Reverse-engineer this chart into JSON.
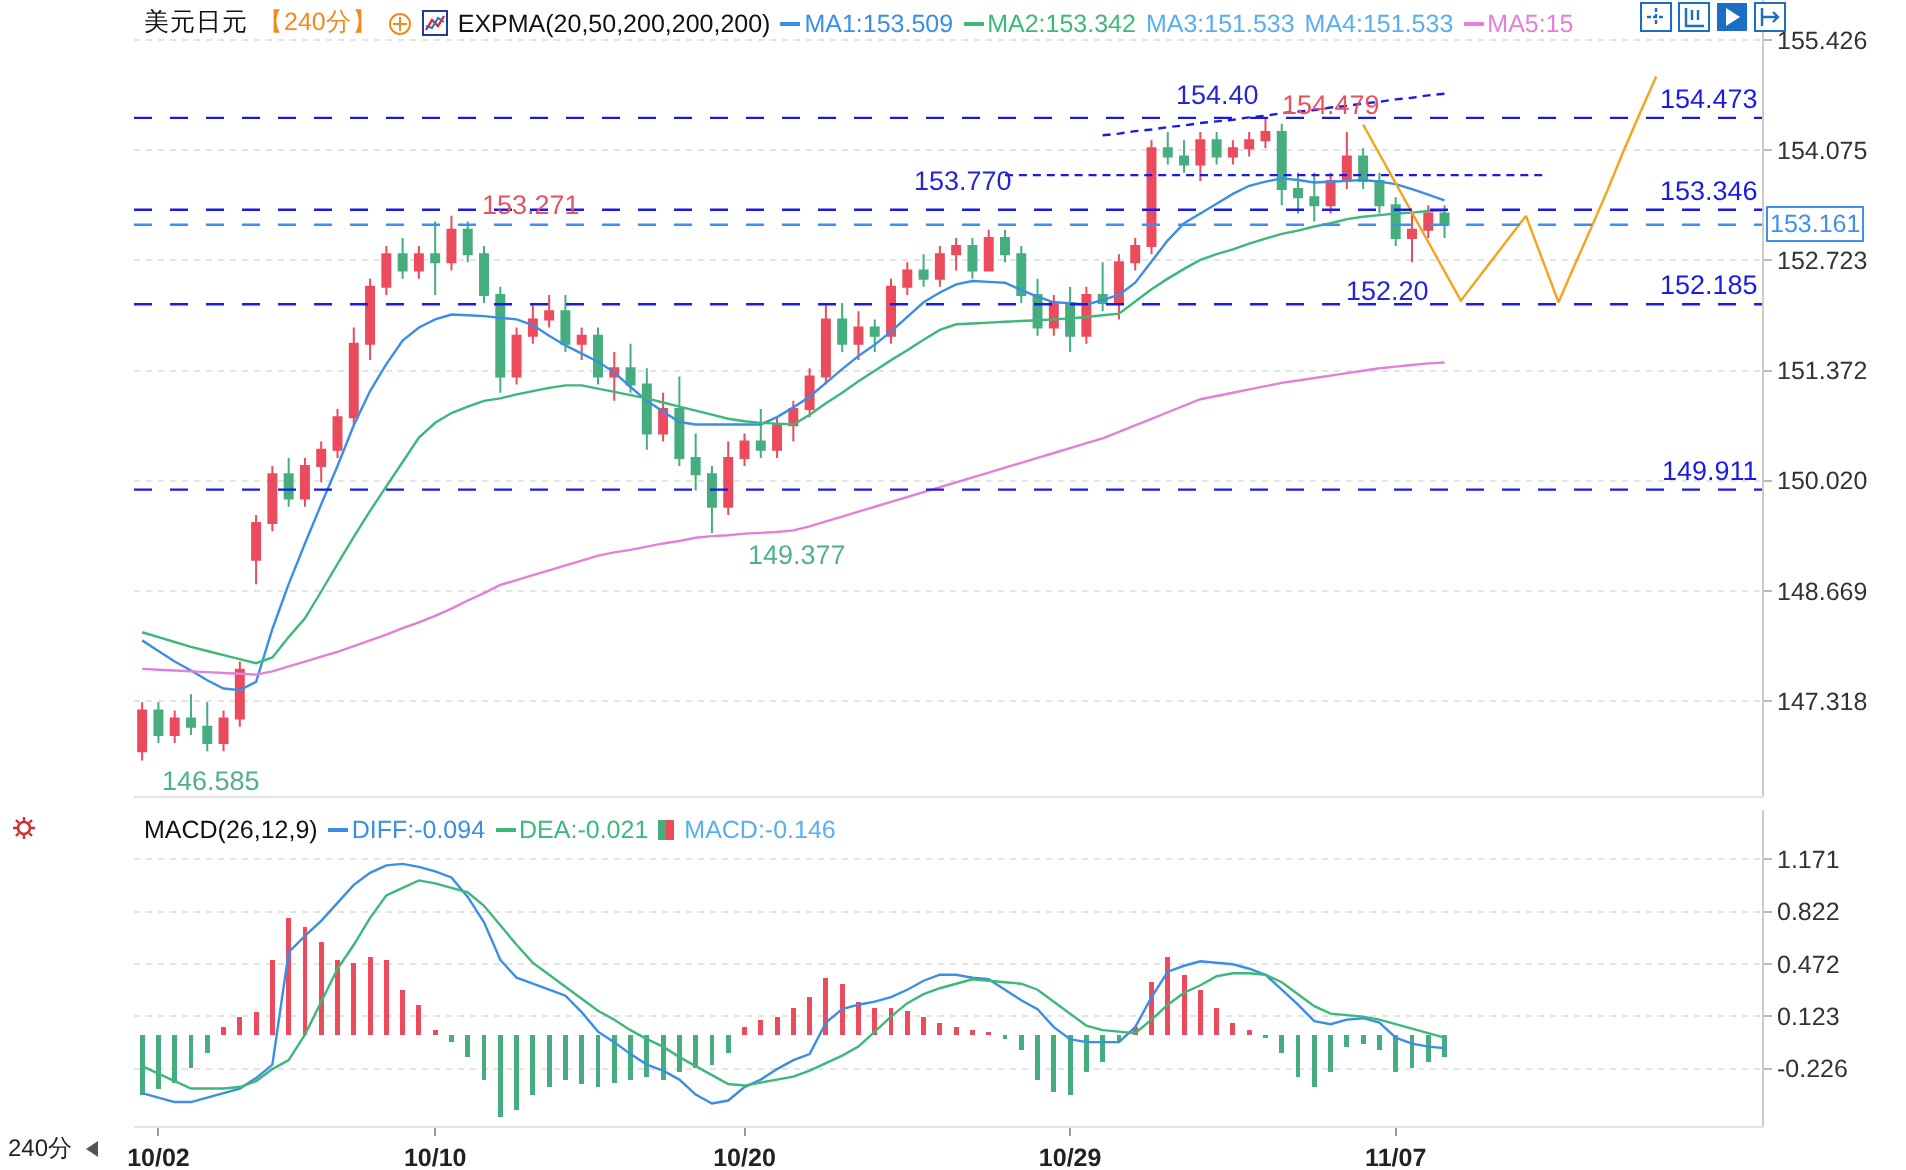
{
  "chart_data": [
    {
      "type": "candlestick",
      "title": "美元日元",
      "subtitle": "【240分】",
      "legend_title": "EXPMA(20,50,200,200,200)",
      "legend": "top",
      "grid": "y",
      "tick_labels": "y",
      "categories": [
        null,
        null,
        null,
        null,
        null,
        null,
        null,
        null,
        null,
        null,
        null,
        null,
        null,
        null,
        null,
        null,
        null,
        null,
        null,
        null,
        null,
        null,
        null,
        null,
        null,
        null,
        null,
        null,
        null,
        null,
        null,
        null,
        null,
        null,
        null,
        null,
        null,
        null,
        null,
        null,
        null,
        null,
        null,
        null,
        null,
        null,
        null,
        null,
        null,
        null,
        null,
        null,
        null,
        null,
        null,
        null,
        null,
        null,
        null,
        null,
        null,
        null,
        null,
        null,
        null,
        null,
        null,
        null,
        null,
        null,
        null,
        null,
        null,
        null,
        null,
        null,
        null,
        null,
        null,
        null,
        null,
        null,
        null,
        null,
        null,
        null,
        null,
        null,
        null,
        null,
        null,
        null,
        null,
        null,
        null,
        null,
        null,
        null,
        null,
        null
      ],
      "ohlc": [
        [
          146.7,
          147.3,
          146.585,
          147.2
        ],
        [
          147.2,
          147.3,
          146.8,
          146.9
        ],
        [
          146.9,
          147.2,
          146.8,
          147.1
        ],
        [
          147.1,
          147.4,
          146.9,
          147.0
        ],
        [
          147.0,
          147.3,
          146.7,
          146.8
        ],
        [
          146.8,
          147.2,
          146.7,
          147.1
        ],
        [
          147.1,
          147.8,
          147.0,
          147.7
        ],
        [
          149.05,
          149.6,
          148.75,
          149.5
        ],
        [
          149.5,
          150.2,
          149.4,
          150.1
        ],
        [
          150.1,
          150.3,
          149.7,
          149.8
        ],
        [
          149.8,
          150.3,
          149.7,
          150.2
        ],
        [
          150.2,
          150.5,
          150.0,
          150.4
        ],
        [
          150.4,
          150.9,
          150.3,
          150.8
        ],
        [
          150.8,
          151.9,
          150.7,
          151.7
        ],
        [
          151.7,
          152.5,
          151.5,
          152.4
        ],
        [
          152.4,
          152.9,
          152.3,
          152.8
        ],
        [
          152.8,
          153.0,
          152.5,
          152.6
        ],
        [
          152.6,
          152.9,
          152.5,
          152.8
        ],
        [
          152.8,
          153.2,
          152.3,
          152.7
        ],
        [
          152.7,
          153.271,
          152.6,
          153.1
        ],
        [
          153.1,
          153.2,
          152.7,
          152.8
        ],
        [
          152.8,
          152.9,
          152.2,
          152.3
        ],
        [
          152.3,
          152.4,
          151.1,
          151.3
        ],
        [
          151.3,
          151.9,
          151.2,
          151.8
        ],
        [
          151.8,
          152.2,
          151.7,
          152.0
        ],
        [
          152.0,
          152.3,
          151.9,
          152.1
        ],
        [
          152.1,
          152.3,
          151.6,
          151.7
        ],
        [
          151.7,
          151.9,
          151.5,
          151.8
        ],
        [
          151.8,
          151.9,
          151.2,
          151.3
        ],
        [
          151.3,
          151.6,
          151.0,
          151.4
        ],
        [
          151.4,
          151.7,
          151.1,
          151.2
        ],
        [
          151.2,
          151.4,
          150.4,
          150.6
        ],
        [
          150.6,
          151.1,
          150.5,
          150.9
        ],
        [
          150.9,
          151.3,
          150.2,
          150.3
        ],
        [
          150.3,
          150.6,
          149.9,
          150.1
        ],
        [
          150.1,
          150.2,
          149.377,
          149.7
        ],
        [
          149.7,
          150.5,
          149.6,
          150.3
        ],
        [
          150.3,
          150.6,
          150.2,
          150.5
        ],
        [
          150.5,
          150.9,
          150.3,
          150.4
        ],
        [
          150.4,
          150.8,
          150.3,
          150.7
        ],
        [
          150.7,
          151.0,
          150.5,
          150.9
        ],
        [
          150.9,
          151.4,
          150.8,
          151.3
        ],
        [
          151.3,
          152.2,
          151.2,
          152.0
        ],
        [
          152.0,
          152.2,
          151.6,
          151.7
        ],
        [
          151.7,
          152.1,
          151.5,
          151.9
        ],
        [
          151.9,
          152.0,
          151.6,
          151.8
        ],
        [
          151.8,
          152.5,
          151.7,
          152.4
        ],
        [
          152.4,
          152.7,
          152.3,
          152.6
        ],
        [
          152.6,
          152.8,
          152.4,
          152.5
        ],
        [
          152.5,
          152.9,
          152.4,
          152.8
        ],
        [
          152.8,
          153.0,
          152.6,
          152.9
        ],
        [
          152.9,
          153.0,
          152.5,
          152.6
        ],
        [
          152.6,
          153.1,
          152.6,
          153.0
        ],
        [
          153.0,
          153.1,
          152.7,
          152.8
        ],
        [
          152.8,
          152.9,
          152.2,
          152.3
        ],
        [
          152.3,
          152.5,
          151.8,
          151.9
        ],
        [
          151.9,
          152.3,
          151.8,
          152.2
        ],
        [
          152.2,
          152.4,
          151.6,
          151.8
        ],
        [
          151.8,
          152.4,
          151.7,
          152.3
        ],
        [
          152.3,
          152.7,
          152.1,
          152.2
        ],
        [
          152.2,
          152.8,
          152.0,
          152.7
        ],
        [
          152.7,
          153.0,
          152.6,
          152.9
        ],
        [
          152.9,
          154.2,
          152.8,
          154.1
        ],
        [
          154.1,
          154.3,
          153.9,
          154.0
        ],
        [
          154.0,
          154.2,
          153.8,
          153.9
        ],
        [
          153.9,
          154.3,
          153.7,
          154.2
        ],
        [
          154.2,
          154.3,
          153.9,
          154.0
        ],
        [
          154.0,
          154.2,
          153.9,
          154.1
        ],
        [
          154.1,
          154.3,
          154.0,
          154.2
        ],
        [
          154.2,
          154.479,
          154.1,
          154.3
        ],
        [
          154.3,
          154.4,
          153.4,
          153.6
        ],
        [
          153.6,
          153.8,
          153.3,
          153.5
        ],
        [
          153.5,
          153.8,
          153.2,
          153.4
        ],
        [
          153.4,
          153.8,
          153.3,
          153.7
        ],
        [
          153.7,
          154.3,
          153.6,
          154.0
        ],
        [
          154.0,
          154.1,
          153.6,
          153.7
        ],
        [
          153.7,
          153.8,
          153.3,
          153.4
        ],
        [
          153.4,
          153.5,
          152.9,
          153.0
        ],
        [
          153.0,
          153.3,
          152.7,
          153.1
        ],
        [
          153.1,
          153.4,
          153.0,
          153.3
        ],
        [
          153.3,
          153.4,
          153.0,
          153.161
        ],
        null,
        null,
        null,
        null,
        null,
        null,
        null,
        null,
        null,
        null,
        null,
        null,
        null,
        null,
        null,
        null,
        null,
        null,
        null
      ],
      "colors": [
        "#eb4b5c",
        "#46ad7f",
        "#eb4b5c",
        "#46ad7f",
        "#46ad7f",
        "#eb4b5c",
        "#eb4b5c",
        "#eb4b5c",
        "#eb4b5c",
        "#46ad7f",
        "#eb4b5c",
        "#eb4b5c",
        "#eb4b5c",
        "#eb4b5c",
        "#eb4b5c",
        "#eb4b5c",
        "#46ad7f",
        "#eb4b5c",
        "#46ad7f",
        "#eb4b5c",
        "#46ad7f",
        "#46ad7f",
        "#46ad7f",
        "#eb4b5c",
        "#eb4b5c",
        "#eb4b5c",
        "#46ad7f",
        "#eb4b5c",
        "#46ad7f",
        "#eb4b5c",
        "#46ad7f",
        "#46ad7f",
        "#eb4b5c",
        "#46ad7f",
        "#46ad7f",
        "#46ad7f",
        "#eb4b5c",
        "#eb4b5c",
        "#46ad7f",
        "#eb4b5c",
        "#eb4b5c",
        "#eb4b5c",
        "#eb4b5c",
        "#46ad7f",
        "#eb4b5c",
        "#46ad7f",
        "#eb4b5c",
        "#eb4b5c",
        "#46ad7f",
        "#eb4b5c",
        "#eb4b5c",
        "#46ad7f",
        "#eb4b5c",
        "#46ad7f",
        "#46ad7f",
        "#46ad7f",
        "#eb4b5c",
        "#46ad7f",
        "#eb4b5c",
        "#46ad7f",
        "#eb4b5c",
        "#eb4b5c",
        "#eb4b5c",
        "#46ad7f",
        "#46ad7f",
        "#eb4b5c",
        "#46ad7f",
        "#eb4b5c",
        "#eb4b5c",
        "#eb4b5c",
        "#46ad7f",
        "#46ad7f",
        "#46ad7f",
        "#eb4b5c",
        "#eb4b5c",
        "#46ad7f",
        "#46ad7f",
        "#46ad7f",
        "#eb4b5c",
        "#eb4b5c",
        "#46ad7f",
        null,
        null,
        null,
        null,
        null,
        null,
        null,
        null,
        null,
        null,
        null,
        null,
        null,
        null,
        null,
        null,
        null,
        null,
        null
      ],
      "series": [
        {
          "name": "MA1:153.509",
          "type": "line",
          "color": "#3a8ee6",
          "values": [
            148.06,
            147.93,
            147.8,
            147.69,
            147.57,
            147.47,
            147.45,
            147.55,
            148.2,
            148.75,
            149.25,
            149.73,
            150.2,
            150.7,
            151.12,
            151.45,
            151.74,
            151.9,
            152.0,
            152.06,
            152.05,
            152.04,
            152.02,
            152.0,
            151.93,
            151.8,
            151.68,
            151.58,
            151.48,
            151.35,
            151.17,
            151.0,
            150.87,
            150.74,
            150.71,
            150.71,
            150.71,
            150.71,
            150.71,
            150.8,
            150.92,
            151.05,
            151.22,
            151.39,
            151.55,
            151.69,
            151.85,
            152.03,
            152.21,
            152.33,
            152.43,
            152.47,
            152.46,
            152.45,
            152.36,
            152.28,
            152.21,
            152.2,
            152.18,
            152.24,
            152.3,
            152.45,
            152.71,
            152.97,
            153.18,
            153.3,
            153.42,
            153.54,
            153.64,
            153.69,
            153.73,
            153.71,
            153.68,
            153.69,
            153.7,
            153.71,
            153.69,
            153.66,
            153.6,
            153.53,
            153.46,
            null,
            null,
            null,
            null,
            null,
            null,
            null,
            null,
            null,
            null,
            null,
            null,
            null,
            null,
            null,
            null,
            null,
            null,
            null
          ]
        },
        {
          "name": "MA2:153.342",
          "type": "line",
          "color": "#3cb878",
          "values": [
            148.16,
            148.1,
            148.04,
            147.98,
            147.93,
            147.88,
            147.83,
            147.78,
            147.85,
            148.1,
            148.33,
            148.66,
            149.0,
            149.33,
            149.65,
            149.95,
            150.25,
            150.55,
            150.73,
            150.85,
            150.93,
            151.0,
            151.03,
            151.08,
            151.12,
            151.16,
            151.19,
            151.19,
            151.15,
            151.11,
            151.07,
            151.03,
            150.98,
            150.93,
            150.88,
            150.83,
            150.78,
            150.75,
            150.73,
            150.72,
            150.71,
            150.83,
            150.97,
            151.1,
            151.24,
            151.37,
            151.5,
            151.62,
            151.75,
            151.87,
            151.94,
            151.95,
            151.96,
            151.97,
            151.98,
            151.99,
            152.0,
            152.01,
            152.03,
            152.05,
            152.07,
            152.22,
            152.37,
            152.5,
            152.62,
            152.73,
            152.8,
            152.86,
            152.93,
            152.99,
            153.05,
            153.09,
            153.14,
            153.18,
            153.23,
            153.26,
            153.28,
            153.3,
            153.31,
            153.33,
            153.34,
            null,
            null,
            null,
            null,
            null,
            null,
            null,
            null,
            null,
            null,
            null,
            null,
            null,
            null,
            null,
            null,
            null,
            null,
            null
          ]
        },
        {
          "name": "MA5:15",
          "type": "line",
          "color": "#e47fd8",
          "values": [
            147.71,
            147.7,
            147.69,
            147.68,
            147.67,
            147.66,
            147.65,
            147.64,
            147.68,
            147.74,
            147.8,
            147.86,
            147.92,
            147.99,
            148.06,
            148.13,
            148.21,
            148.28,
            148.36,
            148.45,
            148.55,
            148.64,
            148.74,
            148.8,
            148.86,
            148.92,
            148.98,
            149.04,
            149.1,
            149.14,
            149.17,
            149.21,
            149.25,
            149.28,
            149.32,
            149.34,
            149.35,
            149.37,
            149.38,
            149.39,
            149.41,
            149.46,
            149.52,
            149.58,
            149.64,
            149.7,
            149.76,
            149.82,
            149.88,
            149.94,
            150.0,
            150.06,
            150.12,
            150.18,
            150.24,
            150.3,
            150.36,
            150.42,
            150.48,
            150.54,
            150.62,
            150.7,
            150.78,
            150.86,
            150.94,
            151.02,
            151.06,
            151.1,
            151.14,
            151.18,
            151.22,
            151.25,
            151.28,
            151.31,
            151.34,
            151.37,
            151.4,
            151.42,
            151.44,
            151.46,
            151.47,
            null,
            null,
            null,
            null,
            null,
            null,
            null,
            null,
            null,
            null,
            null,
            null,
            null,
            null,
            null,
            null,
            null,
            null,
            null
          ]
        },
        {
          "type": "line",
          "color": "#1a1ae6",
          "line_style": "dashed",
          "values": [
            null,
            null,
            null,
            null,
            null,
            null,
            null,
            null,
            null,
            null,
            null,
            null,
            null,
            null,
            null,
            null,
            null,
            null,
            null,
            null,
            null,
            null,
            null,
            null,
            null,
            null,
            null,
            null,
            null,
            null,
            null,
            null,
            null,
            null,
            null,
            null,
            null,
            null,
            null,
            null,
            null,
            null,
            null,
            null,
            null,
            null,
            null,
            null,
            null,
            null,
            null,
            null,
            null,
            153.77,
            153.77,
            153.77,
            153.77,
            153.77,
            153.77,
            153.77,
            153.77,
            153.77,
            153.77,
            153.77,
            153.77,
            153.77,
            153.77,
            153.77,
            153.77,
            153.77,
            153.77,
            153.77,
            153.77,
            153.77,
            153.77,
            153.77,
            153.77,
            153.77,
            153.77,
            153.77,
            153.77,
            153.77,
            153.77,
            153.77,
            153.77,
            153.77,
            153.77,
            null,
            null,
            null,
            null,
            null,
            null,
            null,
            null,
            null,
            null,
            null,
            null,
            null
          ]
        },
        {
          "type": "line",
          "color": "#1a1ae6",
          "line_style": "dashed",
          "values": [
            null,
            null,
            null,
            null,
            null,
            null,
            null,
            null,
            null,
            null,
            null,
            null,
            null,
            null,
            null,
            null,
            null,
            null,
            null,
            null,
            null,
            null,
            null,
            null,
            null,
            null,
            null,
            null,
            null,
            null,
            null,
            null,
            null,
            null,
            null,
            null,
            null,
            null,
            null,
            null,
            null,
            null,
            null,
            null,
            null,
            null,
            null,
            null,
            null,
            null,
            null,
            null,
            null,
            null,
            null,
            null,
            null,
            null,
            null,
            154.26,
            154.28,
            154.31,
            154.33,
            154.36,
            154.38,
            154.41,
            154.43,
            154.45,
            154.48,
            154.5,
            154.53,
            154.55,
            154.57,
            154.6,
            154.62,
            154.65,
            154.67,
            154.7,
            154.72,
            154.75,
            154.77,
            null,
            null,
            null,
            null,
            null,
            null,
            null,
            null,
            null,
            null,
            null,
            null,
            null,
            null,
            null,
            null,
            null,
            null,
            null
          ]
        },
        {
          "type": "line",
          "color": "#f7a21b",
          "values": [
            null,
            null,
            null,
            null,
            null,
            null,
            null,
            null,
            null,
            null,
            null,
            null,
            null,
            null,
            null,
            null,
            null,
            null,
            null,
            null,
            null,
            null,
            null,
            null,
            null,
            null,
            null,
            null,
            null,
            null,
            null,
            null,
            null,
            null,
            null,
            null,
            null,
            null,
            null,
            null,
            null,
            null,
            null,
            null,
            null,
            null,
            null,
            null,
            null,
            null,
            null,
            null,
            null,
            null,
            null,
            null,
            null,
            null,
            null,
            null,
            null,
            null,
            null,
            null,
            null,
            null,
            null,
            null,
            null,
            null,
            null,
            null,
            null,
            null,
            null,
            154.39,
            154.03,
            153.67,
            153.31,
            152.95,
            152.59,
            152.23,
            152.49,
            152.75,
            153.01,
            153.27,
            152.74,
            152.21,
            152.67,
            153.12,
            153.58,
            154.07,
            154.53,
            154.98,
            null,
            null,
            null,
            null,
            null,
            null
          ]
        }
      ],
      "ylim": [
        146.15,
        155.92
      ],
      "yticks": [
        155.426,
        154.075,
        152.723,
        151.372,
        {
          "value": 150.02,
          "label": "150.020"
        },
        148.669,
        147.318
      ],
      "ref_lines": [
        {
          "axis": "y",
          "value": 154.473,
          "label": "154.473",
          "color": "#1a1ae6",
          "line_style": "dashed"
        },
        {
          "axis": "y",
          "value": 153.346,
          "label": "153.346",
          "color": "#1a1ae6",
          "line_style": "dashed"
        },
        {
          "axis": "y",
          "value": 153.161,
          "label": "153.161",
          "color": "#3f8ff0",
          "line_style": "dashed"
        },
        {
          "axis": "y",
          "value": 152.185,
          "label": "152.185",
          "color": "#1a1ae6",
          "line_style": "dashed"
        },
        {
          "axis": "y",
          "value": 149.911,
          "label": "149.911",
          "color": "#1a1ae6",
          "line_style": "dashed"
        }
      ],
      "annotations": [
        "MA3:151.533",
        "MA4:151.533",
        "153.271",
        "149.377",
        "146.585",
        "154.40",
        "154.479",
        "153.770",
        "152.20"
      ]
    },
    {
      "type": "bar",
      "title": "MACD(26,12,9)",
      "legend": "top left",
      "grid": "y",
      "categories": [
        null,
        "10/02",
        null,
        null,
        null,
        null,
        null,
        null,
        null,
        null,
        null,
        null,
        null,
        null,
        null,
        null,
        null,
        null,
        "10/10",
        null,
        null,
        null,
        null,
        null,
        null,
        null,
        null,
        null,
        null,
        null,
        null,
        null,
        null,
        null,
        null,
        null,
        null,
        "10/20",
        null,
        null,
        null,
        null,
        null,
        null,
        null,
        null,
        null,
        null,
        null,
        null,
        null,
        null,
        null,
        null,
        null,
        null,
        null,
        "10/29",
        null,
        null,
        null,
        null,
        null,
        null,
        null,
        null,
        null,
        null,
        null,
        null,
        null,
        null,
        null,
        null,
        null,
        null,
        null,
        "11/07",
        null,
        null,
        null,
        null,
        null,
        null,
        null,
        null,
        null,
        null,
        null,
        null,
        null,
        null,
        null,
        null,
        null,
        null,
        null,
        null,
        null,
        null
      ],
      "series": [
        {
          "name": "DIFF:-0.094",
          "type": "line",
          "color": "#3a8ee6",
          "values": [
            -0.39,
            -0.42,
            -0.45,
            -0.45,
            -0.42,
            -0.39,
            -0.36,
            -0.29,
            -0.2,
            0.55,
            0.66,
            0.76,
            0.88,
            1.0,
            1.08,
            1.13,
            1.14,
            1.12,
            1.09,
            1.05,
            0.92,
            0.75,
            0.5,
            0.38,
            0.34,
            0.3,
            0.26,
            0.15,
            0.02,
            -0.05,
            -0.13,
            -0.2,
            -0.24,
            -0.3,
            -0.4,
            -0.46,
            -0.44,
            -0.35,
            -0.3,
            -0.23,
            -0.17,
            -0.13,
            0.08,
            0.17,
            0.2,
            0.22,
            0.25,
            0.3,
            0.36,
            0.4,
            0.4,
            0.38,
            0.37,
            0.3,
            0.23,
            0.17,
            0.05,
            -0.03,
            -0.05,
            -0.05,
            -0.05,
            0.05,
            0.25,
            0.42,
            0.46,
            0.49,
            0.48,
            0.47,
            0.44,
            0.4,
            0.3,
            0.2,
            0.09,
            0.07,
            0.1,
            0.11,
            0.08,
            -0.02,
            -0.06,
            -0.08,
            -0.09,
            null,
            null,
            null,
            null,
            null,
            null,
            null,
            null,
            null,
            null,
            null,
            null,
            null,
            null,
            null,
            null,
            null,
            null,
            null
          ]
        },
        {
          "name": "DEA:-0.021",
          "type": "line",
          "color": "#3cb878",
          "values": [
            -0.21,
            -0.26,
            -0.31,
            -0.36,
            -0.36,
            -0.36,
            -0.35,
            -0.31,
            -0.23,
            -0.17,
            0.0,
            0.22,
            0.44,
            0.6,
            0.78,
            0.93,
            0.98,
            1.03,
            1.01,
            0.98,
            0.95,
            0.86,
            0.73,
            0.6,
            0.48,
            0.4,
            0.32,
            0.24,
            0.16,
            0.1,
            0.03,
            -0.03,
            -0.08,
            -0.15,
            -0.21,
            -0.27,
            -0.33,
            -0.34,
            -0.32,
            -0.3,
            -0.28,
            -0.24,
            -0.19,
            -0.14,
            -0.08,
            0.02,
            0.12,
            0.21,
            0.27,
            0.31,
            0.34,
            0.37,
            0.36,
            0.35,
            0.34,
            0.3,
            0.22,
            0.14,
            0.06,
            0.03,
            0.02,
            0.01,
            0.1,
            0.2,
            0.28,
            0.33,
            0.39,
            0.41,
            0.41,
            0.4,
            0.35,
            0.27,
            0.19,
            0.14,
            0.13,
            0.12,
            0.1,
            0.07,
            0.04,
            0.01,
            -0.02,
            null,
            null,
            null,
            null,
            null,
            null,
            null,
            null,
            null,
            null,
            null,
            null,
            null,
            null,
            null,
            null,
            null,
            null,
            null
          ]
        },
        {
          "name": "MACD:-0.146",
          "values": [
            -0.4,
            -0.36,
            -0.32,
            -0.22,
            -0.12,
            0.05,
            0.12,
            0.15,
            0.5,
            0.78,
            0.72,
            0.62,
            0.5,
            0.48,
            0.52,
            0.5,
            0.3,
            0.2,
            0.03,
            -0.05,
            -0.15,
            -0.3,
            -0.55,
            -0.5,
            -0.4,
            -0.35,
            -0.3,
            -0.33,
            -0.35,
            -0.32,
            -0.3,
            -0.28,
            -0.3,
            -0.25,
            -0.22,
            -0.2,
            -0.12,
            0.05,
            0.1,
            0.12,
            0.18,
            0.25,
            0.38,
            0.34,
            0.22,
            0.18,
            0.18,
            0.16,
            0.12,
            0.08,
            0.05,
            0.03,
            0.02,
            -0.03,
            -0.1,
            -0.3,
            -0.38,
            -0.4,
            -0.25,
            -0.18,
            -0.05,
            0.05,
            0.35,
            0.52,
            0.4,
            0.3,
            0.18,
            0.08,
            0.03,
            -0.02,
            -0.12,
            -0.28,
            -0.35,
            -0.25,
            -0.08,
            -0.06,
            -0.1,
            -0.25,
            -0.22,
            -0.18,
            -0.15,
            null,
            null,
            null,
            null,
            null,
            null,
            null,
            null,
            null,
            null,
            null,
            null,
            null,
            null,
            null,
            null,
            null,
            null,
            null
          ],
          "colors": [
            "#46ad7f",
            "#46ad7f",
            "#46ad7f",
            "#46ad7f",
            "#46ad7f",
            "#eb4b5c",
            "#eb4b5c",
            "#eb4b5c",
            "#eb4b5c",
            "#eb4b5c",
            "#eb4b5c",
            "#eb4b5c",
            "#eb4b5c",
            "#eb4b5c",
            "#eb4b5c",
            "#eb4b5c",
            "#eb4b5c",
            "#eb4b5c",
            "#eb4b5c",
            "#46ad7f",
            "#46ad7f",
            "#46ad7f",
            "#46ad7f",
            "#46ad7f",
            "#46ad7f",
            "#46ad7f",
            "#46ad7f",
            "#46ad7f",
            "#46ad7f",
            "#46ad7f",
            "#46ad7f",
            "#46ad7f",
            "#46ad7f",
            "#46ad7f",
            "#46ad7f",
            "#46ad7f",
            "#46ad7f",
            "#eb4b5c",
            "#eb4b5c",
            "#eb4b5c",
            "#eb4b5c",
            "#eb4b5c",
            "#eb4b5c",
            "#eb4b5c",
            "#eb4b5c",
            "#eb4b5c",
            "#eb4b5c",
            "#eb4b5c",
            "#eb4b5c",
            "#eb4b5c",
            "#eb4b5c",
            "#eb4b5c",
            "#eb4b5c",
            "#46ad7f",
            "#46ad7f",
            "#46ad7f",
            "#46ad7f",
            "#46ad7f",
            "#46ad7f",
            "#46ad7f",
            "#46ad7f",
            "#eb4b5c",
            "#eb4b5c",
            "#eb4b5c",
            "#eb4b5c",
            "#eb4b5c",
            "#eb4b5c",
            "#eb4b5c",
            "#eb4b5c",
            "#46ad7f",
            "#46ad7f",
            "#46ad7f",
            "#46ad7f",
            "#46ad7f",
            "#46ad7f",
            "#46ad7f",
            "#46ad7f",
            "#46ad7f",
            "#46ad7f",
            "#46ad7f",
            "#46ad7f",
            null,
            null,
            null,
            null,
            null,
            null,
            null,
            null,
            null,
            null,
            null,
            null,
            null,
            null,
            null,
            null,
            null,
            null,
            null
          ]
        }
      ],
      "ylim": [
        -0.61,
        1.5
      ],
      "yticks": [
        1.171,
        0.822,
        0.472,
        0.123,
        -0.226
      ],
      "annotations": [
        "240分"
      ]
    }
  ]
}
